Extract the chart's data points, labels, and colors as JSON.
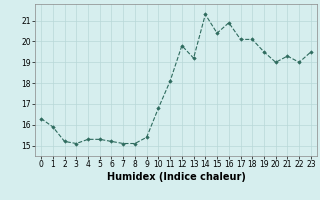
{
  "x": [
    0,
    1,
    2,
    3,
    4,
    5,
    6,
    7,
    8,
    9,
    10,
    11,
    12,
    13,
    14,
    15,
    16,
    17,
    18,
    19,
    20,
    21,
    22,
    23
  ],
  "y": [
    16.3,
    15.9,
    15.2,
    15.1,
    15.3,
    15.3,
    15.2,
    15.1,
    15.1,
    15.4,
    16.8,
    18.1,
    19.8,
    19.2,
    21.3,
    20.4,
    20.9,
    20.1,
    20.1,
    19.5,
    19.0,
    19.3,
    19.0,
    19.5
  ],
  "xlabel": "Humidex (Indice chaleur)",
  "ylim": [
    14.5,
    21.8
  ],
  "yticks": [
    15,
    16,
    17,
    18,
    19,
    20,
    21
  ],
  "line_color": "#2e6b5e",
  "marker_color": "#2e6b5e",
  "bg_color": "#d6eeee",
  "grid_color": "#b8d8d8",
  "tick_label_fontsize": 5.5,
  "xlabel_fontsize": 7.0
}
